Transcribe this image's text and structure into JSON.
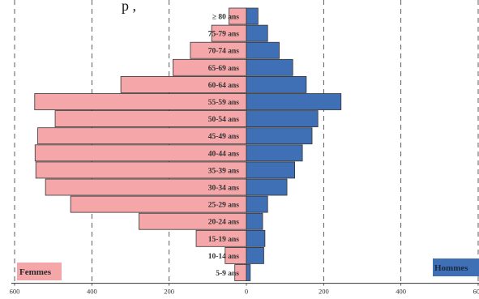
{
  "chart_data": {
    "type": "bar",
    "orientation": "horizontal",
    "title_fragment": "p                     ,",
    "categories": [
      "≥ 80 ans",
      "75-79 ans",
      "70-74 ans",
      "65-69 ans",
      "60-64 ans",
      "55-59 ans",
      "50-54 ans",
      "45-49 ans",
      "40-44 ans",
      "35-39 ans",
      "30-34 ans",
      "25-29 ans",
      "20-24 ans",
      "15-19 ans",
      "10-14 ans",
      "5-9 ans"
    ],
    "series": [
      {
        "name": "Femmes",
        "color": "#f4a6a8",
        "values": [
          45,
          90,
          145,
          190,
          325,
          548,
          495,
          540,
          547,
          545,
          520,
          455,
          278,
          130,
          55,
          30
        ]
      },
      {
        "name": "Hommes",
        "color": "#3f6fb5",
        "values": [
          30,
          55,
          85,
          120,
          155,
          245,
          185,
          170,
          145,
          125,
          105,
          55,
          42,
          48,
          45,
          10
        ]
      }
    ],
    "xlim": [
      -600,
      600
    ],
    "xticks": [
      -600,
      -400,
      -200,
      0,
      200,
      400,
      600
    ],
    "xtick_labels": [
      "600",
      "400",
      "200",
      "0",
      "200",
      "400",
      "600"
    ],
    "grid": "vertical dashed",
    "legend": [
      "bottom-left: Femmes",
      "bottom-right: Hommes"
    ]
  }
}
